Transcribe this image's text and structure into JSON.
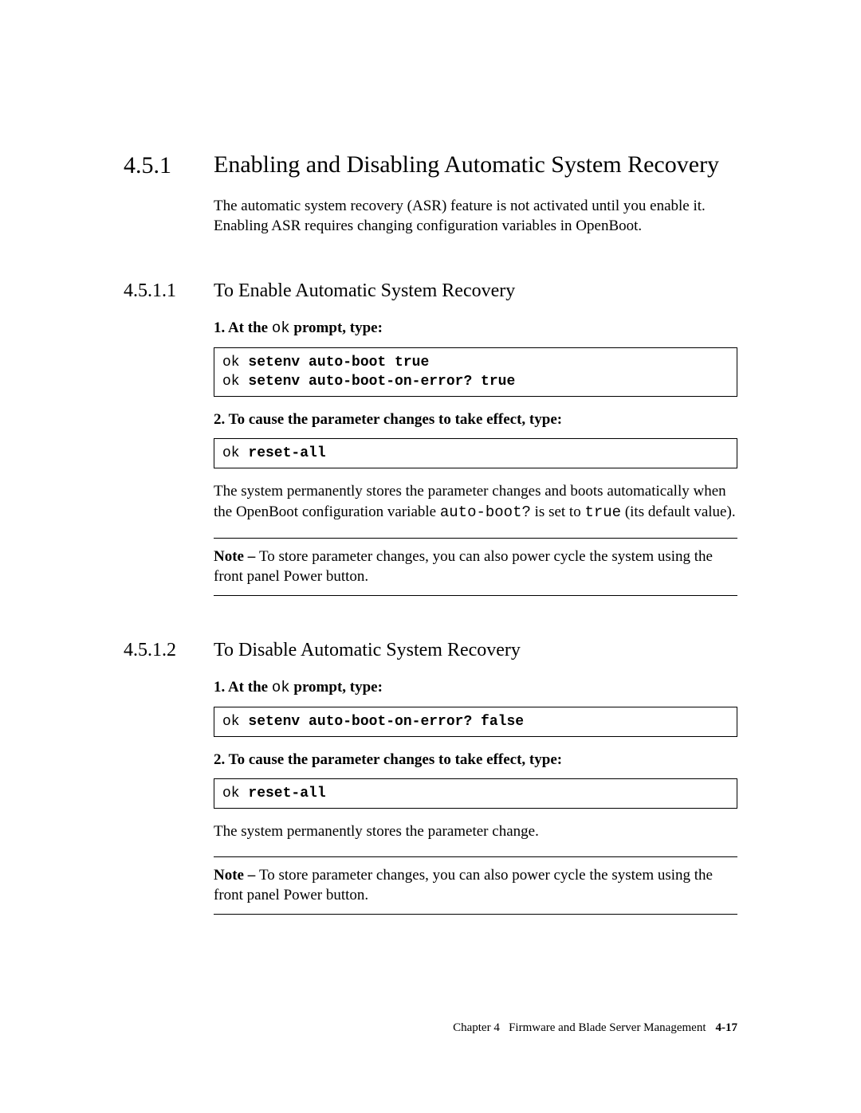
{
  "colors": {
    "text": "#000000",
    "background": "#ffffff",
    "border": "#000000"
  },
  "typography": {
    "body_family": "Palatino Linotype, Palatino, Book Antiqua, Georgia, serif",
    "mono_family": "Courier New, Courier, monospace",
    "body_size_pt": 14,
    "h2_size_pt": 22,
    "h3_size_pt": 18,
    "footer_size_pt": 11
  },
  "h2": {
    "number": "4.5.1",
    "title": "Enabling and Disabling Automatic System Recovery"
  },
  "intro": "The automatic system recovery (ASR) feature is not activated until you enable it. Enabling ASR requires changing configuration variables in OpenBoot.",
  "s1": {
    "number": "4.5.1.1",
    "title": "To Enable Automatic System Recovery",
    "step1_a": "1. At the ",
    "step1_mono": "ok",
    "step1_b": " prompt, type:",
    "code1_p1": "ok ",
    "code1_b1": "setenv auto-boot true",
    "code1_p2": "ok ",
    "code1_b2": "setenv auto-boot-on-error? true",
    "step2": "2. To cause the parameter changes to take effect, type:",
    "code2_p": "ok ",
    "code2_b": "reset-all",
    "para_a": "The system permanently stores the parameter changes and boots automatically when the OpenBoot configuration variable ",
    "para_mono1": "auto-boot?",
    "para_b": " is set to ",
    "para_mono2": "true",
    "para_c": " (its default value).",
    "note_label": "Note – ",
    "note_text": "To store parameter changes, you can also power cycle the system using the front panel Power button."
  },
  "s2": {
    "number": "4.5.1.2",
    "title": "To Disable Automatic System Recovery",
    "step1_a": "1. At the ",
    "step1_mono": "ok",
    "step1_b": " prompt, type:",
    "code1_p": "ok ",
    "code1_b": "setenv auto-boot-on-error? false",
    "step2": "2. To cause the parameter changes to take effect, type:",
    "code2_p": "ok ",
    "code2_b": "reset-all",
    "para": "The system permanently stores the parameter change.",
    "note_label": "Note – ",
    "note_text": "To store parameter changes, you can also power cycle the system using the front panel Power button."
  },
  "footer": {
    "chapter": "Chapter 4",
    "title": "Firmware and Blade Server Management",
    "page": "4-17"
  }
}
